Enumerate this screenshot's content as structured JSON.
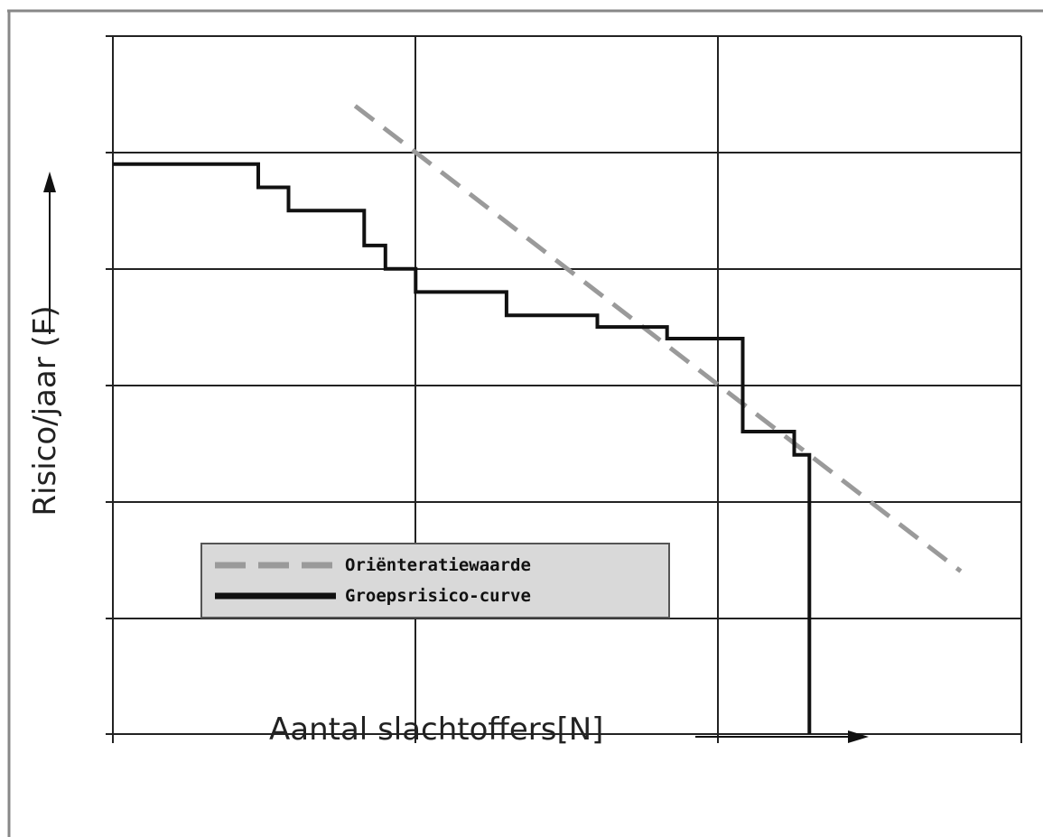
{
  "chart_data": {
    "type": "line",
    "title": "",
    "xlabel": "Aantal slachtoffers[N]",
    "ylabel": "Risico/jaar (F)",
    "grid": true,
    "legend_placement": "lower-left",
    "x_tick_count": 4,
    "y_tick_count": 7,
    "xlim": [
      0,
      3
    ],
    "ylim": [
      0,
      6
    ],
    "series": [
      {
        "name": "Oriënteratiewaarde",
        "style": "dashed",
        "color": "#9a9a9a",
        "x": [
          0.8,
          2.8
        ],
        "y": [
          5.4,
          1.4
        ]
      },
      {
        "name": "Groepsrisico-curve",
        "style": "step",
        "color": "#111111",
        "x": [
          0.0,
          0.48,
          0.48,
          0.58,
          0.58,
          0.83,
          0.83,
          0.9,
          0.9,
          1.0,
          1.0,
          1.3,
          1.3,
          1.6,
          1.6,
          1.83,
          1.83,
          2.08,
          2.08,
          2.25,
          2.25,
          2.3,
          2.3,
          2.3
        ],
        "y": [
          4.9,
          4.9,
          4.7,
          4.7,
          4.5,
          4.5,
          4.2,
          4.2,
          4.0,
          4.0,
          3.8,
          3.8,
          3.6,
          3.6,
          3.5,
          3.5,
          3.4,
          3.4,
          2.6,
          2.6,
          2.4,
          2.4,
          2.4,
          0.0
        ]
      }
    ]
  },
  "legend": {
    "items": [
      {
        "label": "Oriënteratiewaarde",
        "style": "dashed",
        "color": "#9a9a9a"
      },
      {
        "label": "Groepsrisico-curve",
        "style": "solid",
        "color": "#111111"
      }
    ]
  }
}
